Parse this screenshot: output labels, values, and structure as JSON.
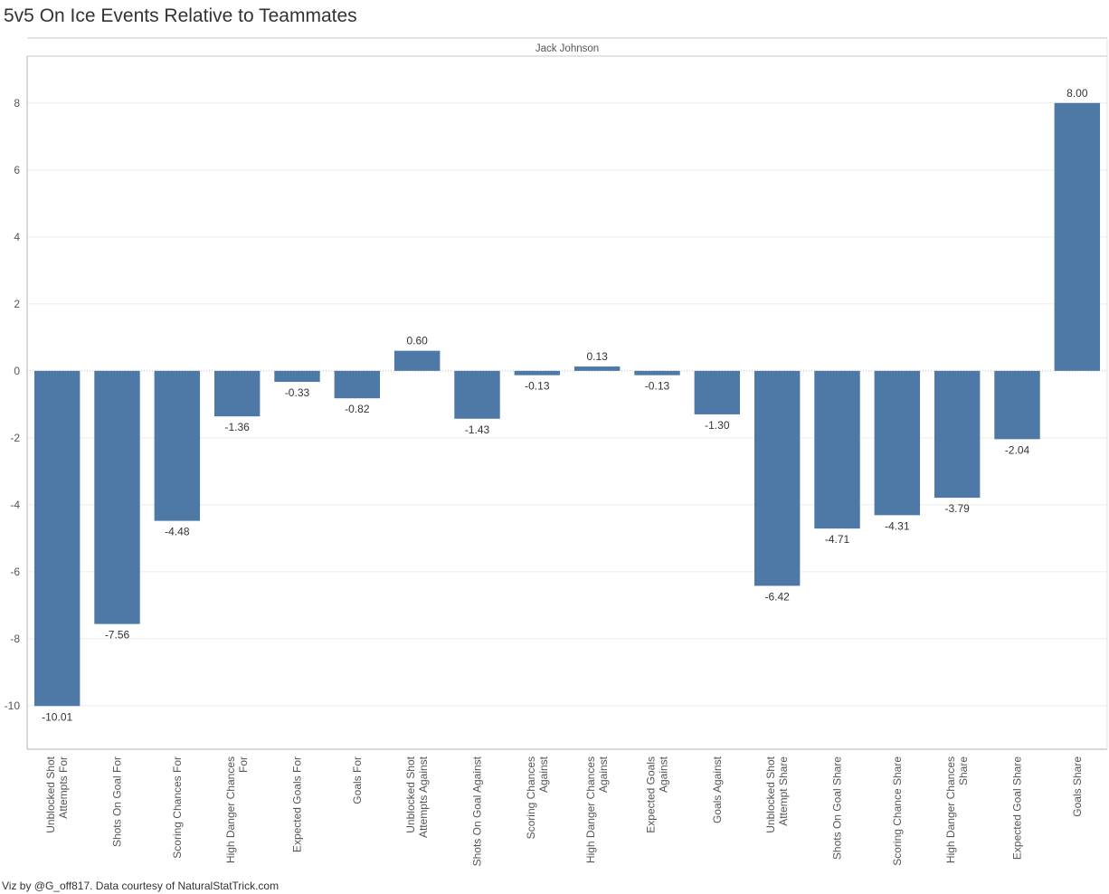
{
  "title": "5v5 On Ice Events Relative to Teammates",
  "pane_header": "Jack Johnson",
  "footer": "Viz by @G_off817.  Data courtesy of NaturalStatTrick.com",
  "colors": {
    "bar": "#4e79a7",
    "grid": "#ececec",
    "axis": "#b0b0b0"
  },
  "chart_data": {
    "type": "bar",
    "title": "5v5 On Ice Events Relative to Teammates",
    "xlabel": "",
    "ylabel": "",
    "ylim": [
      -11.3,
      9.4
    ],
    "yticks": [
      8,
      6,
      4,
      2,
      0,
      -2,
      -4,
      -6,
      -8,
      -10
    ],
    "ytick_labels": [
      "8",
      "6",
      "4",
      "2",
      "0",
      "-2",
      "-4",
      "-6",
      "-8",
      "-10"
    ],
    "grid": true,
    "series": [
      {
        "values": [
          -10.01,
          -7.56,
          -4.48,
          -1.36,
          -0.33,
          -0.82,
          0.6,
          -1.43,
          -0.13,
          0.13,
          -0.13,
          -1.3,
          -6.42,
          -4.71,
          -4.31,
          -3.79,
          -2.04,
          8.0
        ],
        "data_labels": [
          "-10.01",
          "-7.56",
          "-4.48",
          "-1.36",
          "-0.33",
          "-0.82",
          "0.60",
          "-1.43",
          "-0.13",
          "0.13",
          "-0.13",
          "-1.30",
          "-6.42",
          "-4.71",
          "-4.31",
          "-3.79",
          "-2.04",
          "8.00"
        ]
      }
    ],
    "categories": [
      [
        "Unblocked Shot",
        "Attempts For"
      ],
      [
        "Shots On Goal For"
      ],
      [
        "Scoring Chances For"
      ],
      [
        "High Danger Chances",
        "For"
      ],
      [
        "Expected Goals For"
      ],
      [
        "Goals For"
      ],
      [
        "Unblocked Shot",
        "Attempts Against"
      ],
      [
        "Shots On Goal Against"
      ],
      [
        "Scoring Chances",
        "Against"
      ],
      [
        "High Danger Chances",
        "Against"
      ],
      [
        "Expected Goals",
        "Against"
      ],
      [
        "Goals Against"
      ],
      [
        "Unblocked Shot",
        "Attempt Share"
      ],
      [
        "Shots On Goal Share"
      ],
      [
        "Scoring Chance Share"
      ],
      [
        "High Danger Chances",
        "Share"
      ],
      [
        "Expected Goal Share"
      ],
      [
        "Goals Share"
      ]
    ]
  }
}
